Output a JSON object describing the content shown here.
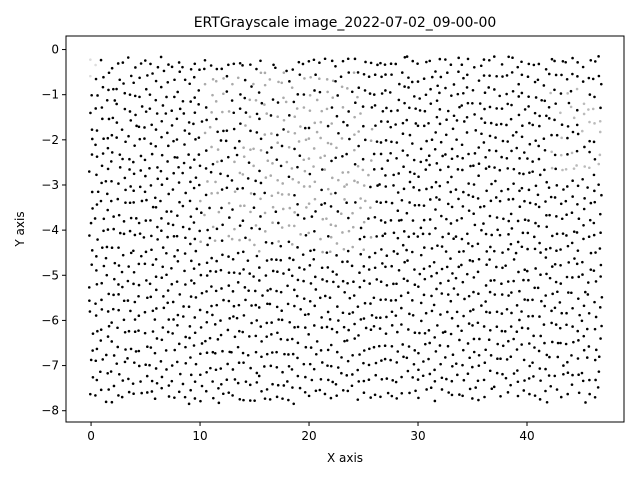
{
  "chart_data": {
    "type": "scatter",
    "title": "ERTGrayscale image_2022-07-02_09-00-00",
    "xlabel": "X axis",
    "ylabel": "Y axis",
    "xlim": [
      -2.3,
      48.9
    ],
    "ylim": [
      -8.25,
      0.3
    ],
    "xticks": [
      0,
      10,
      20,
      30,
      40
    ],
    "yticks": [
      0,
      -1,
      -2,
      -3,
      -4,
      -5,
      -6,
      -7,
      -8
    ],
    "grid": false,
    "legend": "none",
    "marker_color": "#000000",
    "x_range_points": [
      0,
      46.7
    ],
    "y_range_points": [
      -7.85,
      -0.15
    ],
    "point_columns": 94,
    "rows_per_column_approx": 22,
    "light_point_region": {
      "x": [
        10,
        26
      ],
      "y": [
        -4.5,
        -0.5
      ],
      "color": "#aaaaaa"
    },
    "light_point_region_2": {
      "x": [
        42,
        47
      ],
      "y": [
        -3.0,
        -0.8
      ],
      "color": "#bbbbbb"
    }
  }
}
